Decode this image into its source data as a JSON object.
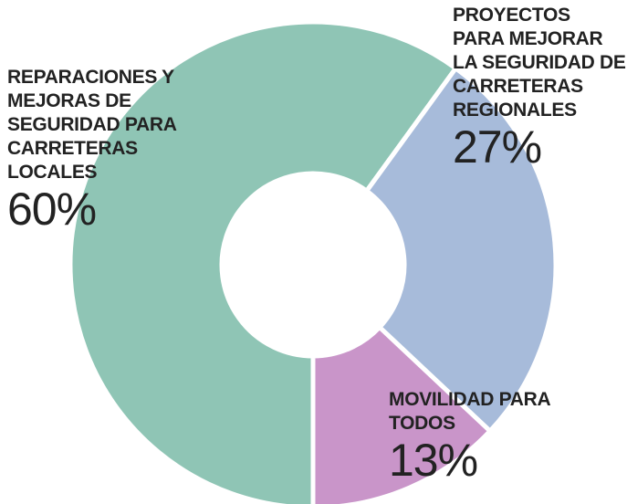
{
  "chart_data": {
    "type": "pie",
    "categories": [
      "REPARACIONES Y MEJORAS DE SEGURIDAD PARA CARRETERAS LOCALES",
      "PROYECTOS PARA MEJORAR LA SEGURIDAD DE CARRETERAS REGIONALES",
      "MOVILIDAD PARA TODOS"
    ],
    "values": [
      60,
      27,
      13
    ],
    "value_labels": [
      "60%",
      "27%",
      "13%"
    ],
    "colors": [
      "#8fc5b5",
      "#a7bbda",
      "#c995c9"
    ],
    "donut": true
  }
}
